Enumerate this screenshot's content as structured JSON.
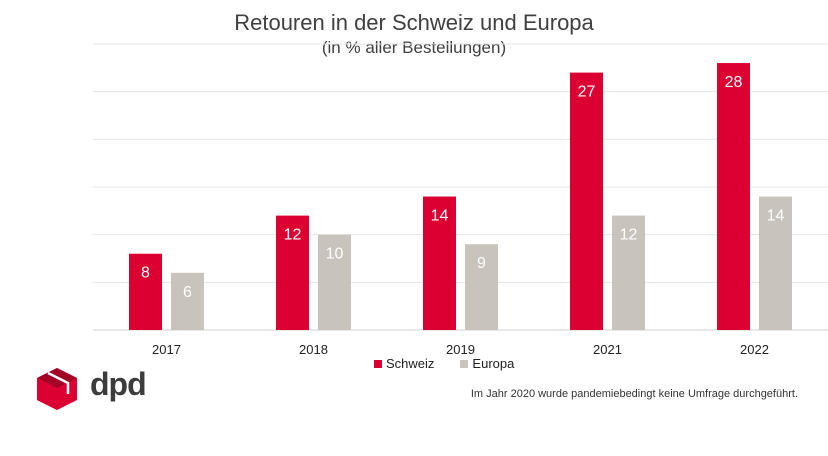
{
  "chart_data": {
    "type": "bar",
    "title": "Retouren in der Schweiz und Europa",
    "subtitle": "(in % aller Bestellungen)",
    "categories": [
      "2017",
      "2018",
      "2019",
      "2021",
      "2022"
    ],
    "series": [
      {
        "name": "Schweiz",
        "values": [
          8,
          12,
          14,
          27,
          28
        ],
        "color": "#dc0032"
      },
      {
        "name": "Europa",
        "values": [
          6,
          10,
          9,
          12,
          14
        ],
        "color": "#c8c3bc"
      }
    ],
    "ylim": [
      0,
      30
    ],
    "grid": true,
    "legend_position": "bottom"
  },
  "note": "Im Jahr 2020 wurde pandemiebedingt keine Umfrage durchgeführt.",
  "logo": {
    "text": "dpd",
    "color": "#dc0032"
  }
}
